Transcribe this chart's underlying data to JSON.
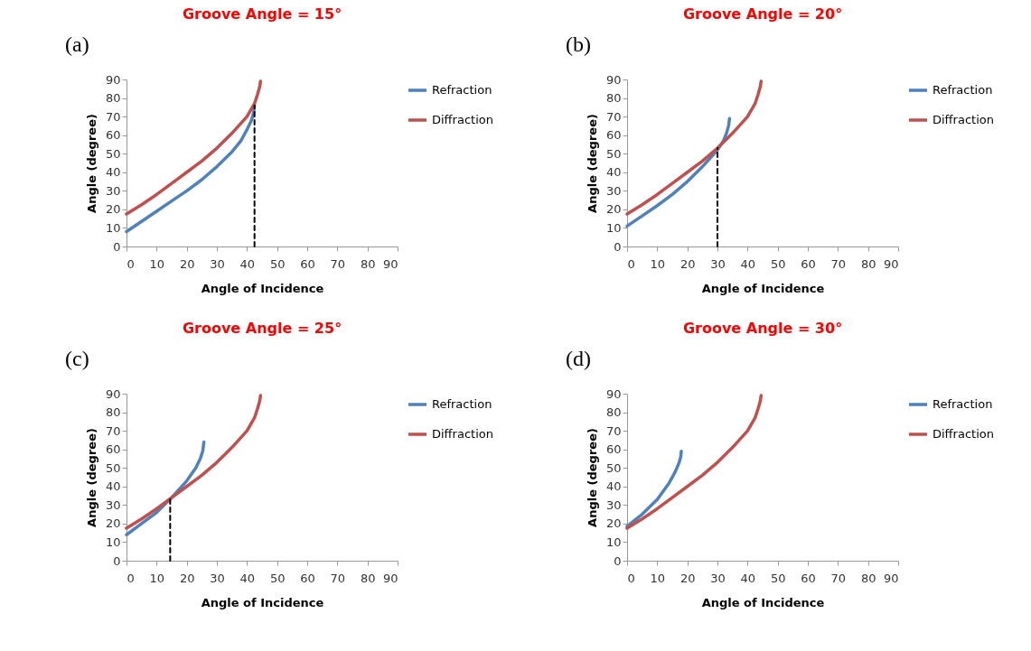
{
  "chart_data": [
    {
      "type": "line",
      "title": "Groove Angle = 15°",
      "xlabel": "Angle of Incidence",
      "ylabel": "Angle (degree)",
      "annotations": [
        "(a)"
      ],
      "xlim": [
        0,
        90
      ],
      "ylim": [
        0,
        90
      ],
      "xticks": [
        0,
        10,
        20,
        30,
        40,
        50,
        60,
        70,
        80,
        90
      ],
      "yticks": [
        0,
        10,
        20,
        30,
        40,
        50,
        60,
        70,
        80,
        90
      ],
      "grid": false,
      "legend": "right",
      "marker": "none",
      "series": [
        {
          "name": "Refraction",
          "color": "#4f81bd",
          "x": [
            0,
            5,
            10,
            15,
            20,
            25,
            30,
            35,
            38,
            40,
            41.5,
            42.2,
            42.5
          ],
          "values": [
            8,
            13.5,
            19,
            24.5,
            30,
            36,
            43,
            51,
            57,
            63,
            68,
            72,
            76
          ]
        },
        {
          "name": "Diffraction",
          "color": "#c0504d",
          "x": [
            0,
            5,
            10,
            15,
            20,
            25,
            30,
            35,
            40,
            42.5,
            43.5,
            44.2,
            44.5
          ],
          "values": [
            17.5,
            22.5,
            28,
            34,
            40,
            46,
            53,
            61,
            70,
            77,
            82,
            86,
            89
          ]
        },
        {
          "color": "#000000",
          "line_style": "dashed",
          "x": [
            42.5,
            42.5
          ],
          "values": [
            0,
            76
          ]
        }
      ]
    },
    {
      "type": "line",
      "title": "Groove Angle = 20°",
      "xlabel": "Angle of Incidence",
      "ylabel": "Angle (degree)",
      "annotations": [
        "(b)"
      ],
      "xlim": [
        0,
        90
      ],
      "ylim": [
        0,
        90
      ],
      "xticks": [
        0,
        10,
        20,
        30,
        40,
        50,
        60,
        70,
        80,
        90
      ],
      "yticks": [
        0,
        10,
        20,
        30,
        40,
        50,
        60,
        70,
        80,
        90
      ],
      "grid": false,
      "legend": "right",
      "marker": "none",
      "series": [
        {
          "name": "Refraction",
          "color": "#4f81bd",
          "x": [
            0,
            5,
            10,
            15,
            20,
            25,
            30,
            32,
            33,
            33.7,
            34
          ],
          "values": [
            11,
            16.5,
            22,
            28,
            35,
            43,
            52,
            57,
            61,
            65,
            69
          ]
        },
        {
          "name": "Diffraction",
          "color": "#c0504d",
          "x": [
            0,
            5,
            10,
            15,
            20,
            25,
            30,
            35,
            40,
            42.5,
            43.5,
            44.2,
            44.5
          ],
          "values": [
            17.5,
            22.5,
            28,
            34,
            40,
            46,
            53,
            61,
            70,
            77,
            82,
            86,
            89
          ]
        },
        {
          "color": "#000000",
          "line_style": "dashed",
          "x": [
            30,
            30
          ],
          "values": [
            0,
            53
          ]
        }
      ]
    },
    {
      "type": "line",
      "title": "Groove Angle = 25°",
      "xlabel": "Angle of Incidence",
      "ylabel": "Angle (degree)",
      "annotations": [
        "(c)"
      ],
      "xlim": [
        0,
        90
      ],
      "ylim": [
        0,
        90
      ],
      "xticks": [
        0,
        10,
        20,
        30,
        40,
        50,
        60,
        70,
        80,
        90
      ],
      "yticks": [
        0,
        10,
        20,
        30,
        40,
        50,
        60,
        70,
        80,
        90
      ],
      "grid": false,
      "legend": "right",
      "marker": "none",
      "series": [
        {
          "name": "Refraction",
          "color": "#4f81bd",
          "x": [
            0,
            5,
            10,
            15,
            20,
            23,
            24.5,
            25.3,
            25.7
          ],
          "values": [
            14,
            20,
            26,
            34,
            43,
            50,
            55,
            59,
            64
          ]
        },
        {
          "name": "Diffraction",
          "color": "#c0504d",
          "x": [
            0,
            5,
            10,
            15,
            20,
            25,
            30,
            35,
            40,
            42.5,
            43.5,
            44.2,
            44.5
          ],
          "values": [
            17.5,
            22.5,
            28,
            34,
            40,
            46,
            53,
            61,
            70,
            77,
            82,
            86,
            89
          ]
        },
        {
          "color": "#000000",
          "line_style": "dashed",
          "x": [
            14.5,
            14.5
          ],
          "values": [
            0,
            33
          ]
        }
      ]
    },
    {
      "type": "line",
      "title": "Groove Angle = 30°",
      "xlabel": "Angle of Incidence",
      "ylabel": "Angle (degree)",
      "annotations": [
        "(d)"
      ],
      "xlim": [
        0,
        90
      ],
      "ylim": [
        0,
        90
      ],
      "xticks": [
        0,
        10,
        20,
        30,
        40,
        50,
        60,
        70,
        80,
        90
      ],
      "yticks": [
        0,
        10,
        20,
        30,
        40,
        50,
        60,
        70,
        80,
        90
      ],
      "grid": false,
      "legend": "right",
      "marker": "none",
      "series": [
        {
          "name": "Refraction",
          "color": "#4f81bd",
          "x": [
            0,
            5,
            10,
            14,
            16,
            17.3,
            17.8,
            18
          ],
          "values": [
            18.5,
            25,
            33,
            42,
            48,
            53,
            56,
            59
          ]
        },
        {
          "name": "Diffraction",
          "color": "#c0504d",
          "x": [
            0,
            5,
            10,
            15,
            20,
            25,
            30,
            35,
            40,
            42.5,
            43.5,
            44.2,
            44.5
          ],
          "values": [
            17.5,
            22.5,
            28,
            34,
            40,
            46,
            53,
            61,
            70,
            77,
            82,
            86,
            89
          ]
        }
      ]
    }
  ]
}
